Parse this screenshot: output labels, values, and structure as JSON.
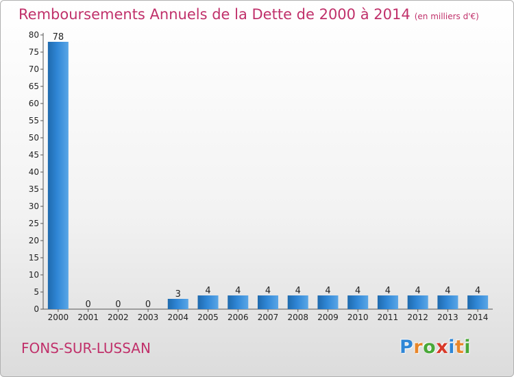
{
  "title": "Remboursements Annuels de la Dette de 2000 à 2014",
  "subtitle": "(en milliers d'€)",
  "commune": "FONS-SUR-LUSSAN",
  "brand": {
    "letters": [
      "P",
      "r",
      "o",
      "x",
      "i",
      "t",
      "i"
    ],
    "colors": [
      "#2f86d6",
      "#e8862a",
      "#49a838",
      "#d83a2a",
      "#2f86d6",
      "#e8862a",
      "#49a838"
    ]
  },
  "colors": {
    "bar": "#2f86d6",
    "bar_dark": "#1f6aad",
    "accent": "#c0306a"
  },
  "chart_data": {
    "type": "bar",
    "title": "Remboursements Annuels de la Dette de 2000 à 2014",
    "xlabel": "",
    "ylabel": "",
    "categories": [
      "2000",
      "2001",
      "2002",
      "2003",
      "2004",
      "2005",
      "2006",
      "2007",
      "2008",
      "2009",
      "2010",
      "2011",
      "2012",
      "2013",
      "2014"
    ],
    "values": [
      78,
      0,
      0,
      0,
      3,
      4,
      4,
      4,
      4,
      4,
      4,
      4,
      4,
      4,
      4
    ],
    "ylim": [
      0,
      80
    ],
    "yticks": [
      0,
      5,
      10,
      15,
      20,
      25,
      30,
      35,
      40,
      45,
      50,
      55,
      60,
      65,
      70,
      75,
      80
    ],
    "grid": false
  }
}
